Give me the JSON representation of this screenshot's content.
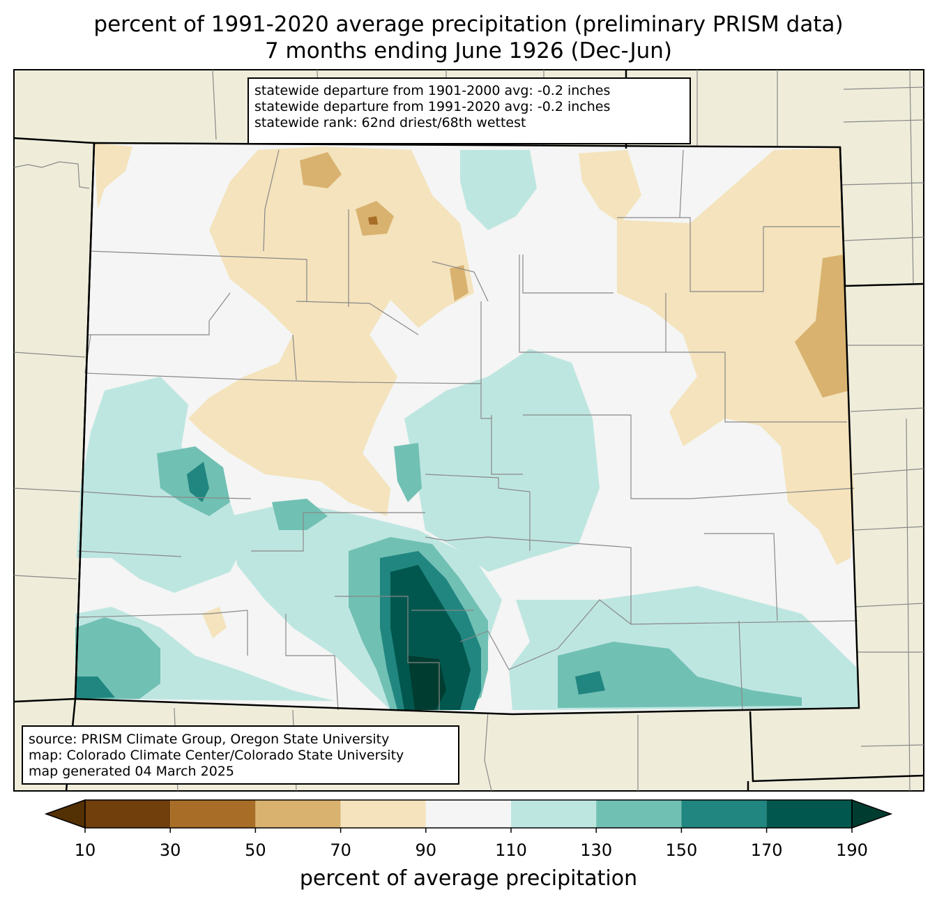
{
  "title": {
    "line1": "percent of 1991-2020 average precipitation (preliminary PRISM data)",
    "line2": "7 months ending June 1926 (Dec-Jun)"
  },
  "stats_box": {
    "line1": "statewide departure from 1901-2000 avg: -0.2 inches",
    "line2": "statewide departure from 1991-2020 avg: -0.2 inches",
    "line3": "statewide rank: 62nd driest/68th wettest"
  },
  "source_box": {
    "line1": "source: PRISM Climate Group, Oregon State University",
    "line2": "map: Colorado Climate Center/Colorado State University",
    "line3": "map generated 04 March 2025"
  },
  "colorbar": {
    "label": "percent of average precipitation",
    "ticks": [
      "10",
      "30",
      "50",
      "70",
      "90",
      "110",
      "130",
      "150",
      "170",
      "190"
    ],
    "colors": {
      "under": "#543005",
      "b10_30": "#703f0c",
      "b30_50": "#a86d26",
      "b50_70": "#d9b26f",
      "b70_90": "#f4e3bc",
      "b90_110": "#f4f5f4",
      "b110_130": "#bee6e1",
      "b130_150": "#71c0b4",
      "b150_170": "#218680",
      "b170_190": "#01574e",
      "over": "#003c30"
    }
  },
  "map_colors": {
    "land_outside": "#efedda",
    "state_border": "#000000",
    "county_border": "#888888"
  }
}
